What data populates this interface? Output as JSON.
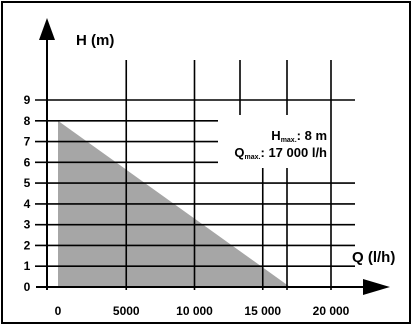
{
  "chart_data": {
    "type": "area",
    "title": "",
    "xlabel": "Q (l/h)",
    "ylabel": "H (m)",
    "xlim": [
      0,
      20000
    ],
    "ylim": [
      0,
      9
    ],
    "x_ticks": [
      0,
      5000,
      10000,
      15000,
      20000
    ],
    "x_tick_labels": [
      "0",
      "5000",
      "10 000",
      "15 000",
      "20 000"
    ],
    "y_ticks": [
      0,
      1,
      2,
      3,
      4,
      5,
      6,
      7,
      8,
      9
    ],
    "y_tick_labels": [
      "0",
      "1",
      "2",
      "3",
      "4",
      "5",
      "6",
      "7",
      "8",
      "9"
    ],
    "series": [
      {
        "x": [
          0,
          17000
        ],
        "y": [
          8,
          0
        ]
      }
    ],
    "annotations": {
      "hmax_prefix": "H",
      "hmax_sub": "max.",
      "hmax_value": ": 8 m",
      "qmax_prefix": "Q",
      "qmax_sub": "max.",
      "qmax_value": ": 17 000 l/h"
    },
    "fill_color": "#a6a6a6",
    "grid": true
  }
}
